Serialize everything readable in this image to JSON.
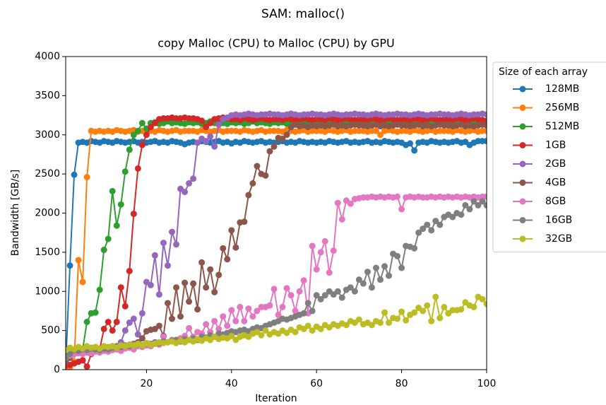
{
  "chart_data": {
    "type": "line",
    "title": "SAM: malloc()",
    "subtitle": "copy Malloc (CPU) to Malloc (CPU) by GPU",
    "x_label": "Iteration",
    "y_label": "Bandwidth [GB/s]",
    "legend_title": "Size of each array",
    "legend": "outside-upper-right",
    "grid": false,
    "xlim": [
      1,
      100
    ],
    "xticks": [
      20,
      40,
      60,
      80,
      100
    ],
    "ylim": [
      0,
      4000
    ],
    "yticks": [
      0,
      500,
      1000,
      1500,
      2000,
      2500,
      3000,
      3500,
      4000
    ],
    "x": [
      1,
      2,
      3,
      4,
      5,
      6,
      7,
      8,
      9,
      10,
      11,
      12,
      13,
      14,
      15,
      16,
      17,
      18,
      19,
      20,
      21,
      22,
      23,
      24,
      25,
      26,
      27,
      28,
      29,
      30,
      31,
      32,
      33,
      34,
      35,
      36,
      37,
      38,
      39,
      40,
      41,
      42,
      43,
      44,
      45,
      46,
      47,
      48,
      49,
      50,
      51,
      52,
      53,
      54,
      55,
      56,
      57,
      58,
      59,
      60,
      61,
      62,
      63,
      64,
      65,
      66,
      67,
      68,
      69,
      70,
      71,
      72,
      73,
      74,
      75,
      76,
      77,
      78,
      79,
      80,
      81,
      82,
      83,
      84,
      85,
      86,
      87,
      88,
      89,
      90,
      91,
      92,
      93,
      94,
      95,
      96,
      97,
      98,
      99,
      100
    ],
    "series": [
      {
        "name": "128MB",
        "color": "#1f77b4",
        "values": [
          50,
          1330,
          2490,
          2900,
          2910,
          2900,
          2920,
          2910,
          2900,
          2920,
          2910,
          2900,
          2920,
          2910,
          2900,
          2910,
          2920,
          2900,
          2910,
          2900,
          2910,
          2920,
          2900,
          2910,
          2900,
          2920,
          2910,
          2900,
          2880,
          2900,
          2910,
          2900,
          2920,
          2910,
          2900,
          2910,
          2920,
          2900,
          2910,
          2890,
          2910,
          2900,
          2920,
          2910,
          2900,
          2910,
          2920,
          2900,
          2910,
          2900,
          2910,
          2920,
          2900,
          2910,
          2900,
          2920,
          2910,
          2900,
          2910,
          2900,
          2910,
          2900,
          2920,
          2910,
          2900,
          2910,
          2920,
          2900,
          2910,
          2900,
          2910,
          2920,
          2900,
          2910,
          2900,
          2920,
          2910,
          2900,
          2910,
          2900,
          2870,
          2890,
          2800,
          2900,
          2910,
          2900,
          2920,
          2910,
          2900,
          2910,
          2900,
          2910,
          2920,
          2900,
          2910,
          2870,
          2900,
          2920,
          2920,
          2920
        ]
      },
      {
        "name": "256MB",
        "color": "#ff7f0e",
        "values": [
          30,
          30,
          100,
          1400,
          1120,
          2460,
          3050,
          3040,
          3050,
          3040,
          3050,
          3040,
          3060,
          3050,
          3040,
          3050,
          3060,
          3040,
          3050,
          3050,
          3050,
          3040,
          3060,
          3050,
          3040,
          3050,
          3060,
          3040,
          3050,
          3050,
          3050,
          3040,
          3060,
          3050,
          3040,
          3050,
          3060,
          3040,
          3050,
          3050,
          3050,
          3040,
          3060,
          3050,
          3040,
          3050,
          3060,
          3040,
          3050,
          3050,
          3050,
          3040,
          3060,
          3050,
          3040,
          3050,
          3060,
          3040,
          3050,
          3050,
          3050,
          3040,
          3060,
          3050,
          3040,
          3050,
          3060,
          3040,
          3050,
          3050,
          3050,
          3040,
          3050,
          3050,
          3000,
          3050,
          3060,
          3050,
          3040,
          3050,
          3050,
          3040,
          3060,
          3050,
          3040,
          3050,
          3060,
          3040,
          3050,
          3050,
          3050,
          3040,
          3060,
          3050,
          3040,
          3050,
          3060,
          3040,
          3050,
          3050
        ]
      },
      {
        "name": "512MB",
        "color": "#2ca02c",
        "values": [
          100,
          200,
          250,
          280,
          260,
          610,
          720,
          730,
          1020,
          1530,
          1670,
          2280,
          1840,
          2110,
          2530,
          2810,
          3000,
          3050,
          3150,
          3080,
          3150,
          3160,
          3140,
          3150,
          3170,
          3150,
          3160,
          3150,
          3140,
          3160,
          3150,
          3160,
          3140,
          3150,
          3170,
          3150,
          3160,
          3150,
          3140,
          3160,
          3150,
          3160,
          3140,
          3150,
          3170,
          3150,
          3160,
          3150,
          3140,
          3160,
          3150,
          3160,
          3140,
          3150,
          3170,
          3150,
          3160,
          3150,
          3140,
          3160,
          3150,
          3160,
          3140,
          3150,
          3170,
          3150,
          3160,
          3150,
          3140,
          3160,
          3150,
          3160,
          3140,
          3150,
          3170,
          3150,
          3160,
          3150,
          3140,
          3160,
          3150,
          3160,
          3140,
          3150,
          3170,
          3150,
          3160,
          3150,
          3140,
          3160,
          3150,
          3160,
          3140,
          3150,
          3170,
          3150,
          3160,
          3150,
          3140,
          3160
        ]
      },
      {
        "name": "1GB",
        "color": "#d62728",
        "values": [
          50,
          60,
          80,
          100,
          120,
          40,
          200,
          250,
          260,
          520,
          610,
          500,
          610,
          1050,
          810,
          1260,
          1990,
          2570,
          2870,
          3000,
          3100,
          3150,
          3200,
          3210,
          3210,
          3220,
          3210,
          3210,
          3220,
          3210,
          3210,
          3200,
          3180,
          3100,
          3150,
          3200,
          3210,
          3220,
          3210,
          3200,
          3200,
          3190,
          3210,
          3200,
          3190,
          3200,
          3210,
          3200,
          3190,
          3200,
          3200,
          3190,
          3210,
          3200,
          3190,
          3200,
          3210,
          3200,
          3190,
          3200,
          3200,
          3190,
          3210,
          3200,
          3190,
          3200,
          3210,
          3200,
          3190,
          3200,
          3200,
          3190,
          3210,
          3200,
          3190,
          3200,
          3210,
          3200,
          3190,
          3200,
          3200,
          3190,
          3210,
          3200,
          3190,
          3200,
          3210,
          3200,
          3190,
          3200,
          3200,
          3190,
          3210,
          3200,
          3190,
          3200,
          3210,
          3200,
          3190,
          3180
        ]
      },
      {
        "name": "2GB",
        "color": "#9467bd",
        "values": [
          150,
          200,
          250,
          270,
          250,
          260,
          280,
          250,
          270,
          260,
          270,
          300,
          300,
          350,
          500,
          600,
          650,
          450,
          720,
          1120,
          1080,
          1460,
          960,
          1620,
          1330,
          1760,
          1600,
          2310,
          2270,
          2380,
          2440,
          2900,
          2950,
          2920,
          2980,
          2850,
          3130,
          3200,
          3220,
          3250,
          3260,
          3250,
          3260,
          3270,
          3260,
          3250,
          3260,
          3260,
          3270,
          3260,
          3260,
          3250,
          3260,
          3270,
          3260,
          3250,
          3260,
          3260,
          3270,
          3260,
          3260,
          3250,
          3260,
          3270,
          3260,
          3250,
          3260,
          3260,
          3270,
          3260,
          3260,
          3250,
          3260,
          3270,
          3260,
          3250,
          3260,
          3260,
          3270,
          3260,
          3260,
          3250,
          3260,
          3270,
          3260,
          3250,
          3260,
          3260,
          3270,
          3260,
          3260,
          3250,
          3260,
          3270,
          3260,
          3250,
          3260,
          3260,
          3270,
          3260
        ]
      },
      {
        "name": "4GB",
        "color": "#8c564b",
        "values": [
          100,
          150,
          200,
          250,
          240,
          250,
          260,
          250,
          240,
          260,
          250,
          270,
          260,
          280,
          300,
          320,
          330,
          350,
          400,
          490,
          510,
          520,
          560,
          430,
          850,
          650,
          1050,
          680,
          1110,
          870,
          1100,
          770,
          1370,
          1050,
          1280,
          990,
          1210,
          1550,
          1410,
          1780,
          1560,
          1880,
          1890,
          2230,
          2380,
          2600,
          2500,
          2480,
          2790,
          2850,
          2960,
          2950,
          3000,
          3100,
          3130,
          3110,
          3120,
          3100,
          3120,
          3110,
          3120,
          3110,
          3120,
          3130,
          3110,
          3120,
          3110,
          3120,
          3130,
          3120,
          3120,
          3110,
          3120,
          3130,
          3110,
          3120,
          3110,
          3120,
          3130,
          3120,
          3120,
          3110,
          3120,
          3130,
          3110,
          3120,
          3110,
          3120,
          3130,
          3120,
          3120,
          3110,
          3120,
          3130,
          3110,
          3120,
          3110,
          3120,
          3130,
          3120
        ]
      },
      {
        "name": "8GB",
        "color": "#e377c2",
        "values": [
          150,
          180,
          200,
          210,
          200,
          220,
          210,
          230,
          220,
          240,
          230,
          250,
          260,
          240,
          270,
          280,
          260,
          300,
          290,
          310,
          300,
          330,
          320,
          420,
          350,
          380,
          360,
          400,
          430,
          530,
          420,
          480,
          460,
          580,
          480,
          620,
          520,
          680,
          560,
          760,
          620,
          800,
          620,
          780,
          680,
          750,
          800,
          800,
          820,
          1030,
          700,
          800,
          1040,
          950,
          750,
          1000,
          1140,
          720,
          1580,
          1280,
          1500,
          1640,
          1240,
          1520,
          2130,
          1920,
          2160,
          2120,
          2180,
          2190,
          2200,
          2200,
          2210,
          2200,
          2210,
          2200,
          2210,
          2200,
          2210,
          2050,
          2200,
          2210,
          2200,
          2210,
          2200,
          2200,
          2210,
          2200,
          2210,
          2200,
          2210,
          2200,
          2210,
          2200,
          2210,
          2200,
          2210,
          2200,
          2210,
          2210
        ]
      },
      {
        "name": "16GB",
        "color": "#7f7f7f",
        "values": [
          150,
          200,
          250,
          240,
          260,
          250,
          270,
          260,
          250,
          270,
          260,
          280,
          300,
          290,
          310,
          300,
          320,
          330,
          310,
          340,
          330,
          350,
          340,
          360,
          350,
          370,
          380,
          360,
          390,
          380,
          400,
          380,
          420,
          410,
          440,
          420,
          460,
          450,
          470,
          490,
          480,
          500,
          510,
          490,
          520,
          540,
          530,
          560,
          580,
          600,
          620,
          650,
          640,
          660,
          680,
          700,
          720,
          850,
          750,
          950,
          900,
          950,
          1000,
          960,
          1000,
          920,
          1020,
          1050,
          1000,
          1150,
          1100,
          1250,
          1050,
          1300,
          1150,
          1320,
          1200,
          1480,
          1450,
          1300,
          1580,
          1570,
          1550,
          1750,
          1800,
          1850,
          1780,
          1900,
          1850,
          1950,
          1980,
          1950,
          2000,
          1980,
          2100,
          2050,
          2150,
          2100,
          2150,
          2100
        ]
      },
      {
        "name": "32GB",
        "color": "#bcbd22",
        "values": [
          250,
          280,
          260,
          290,
          270,
          300,
          280,
          290,
          270,
          300,
          290,
          300,
          280,
          310,
          300,
          320,
          310,
          330,
          310,
          340,
          320,
          330,
          350,
          340,
          350,
          360,
          340,
          370,
          350,
          380,
          360,
          390,
          370,
          400,
          380,
          420,
          390,
          410,
          400,
          430,
          380,
          420,
          440,
          420,
          460,
          480,
          440,
          500,
          450,
          480,
          460,
          500,
          470,
          510,
          480,
          540,
          520,
          560,
          500,
          550,
          520,
          570,
          540,
          580,
          560,
          590,
          570,
          620,
          600,
          640,
          580,
          600,
          570,
          620,
          600,
          730,
          600,
          660,
          650,
          740,
          630,
          700,
          730,
          790,
          750,
          820,
          620,
          930,
          660,
          800,
          720,
          760,
          760,
          770,
          860,
          820,
          800,
          930,
          900,
          840
        ]
      }
    ]
  }
}
